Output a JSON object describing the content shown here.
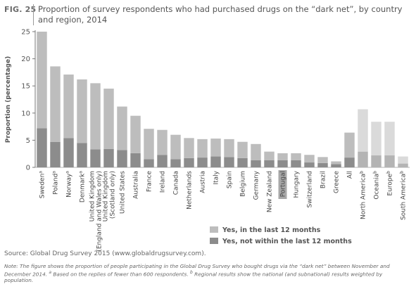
{
  "figure": {
    "label": "FIG. 25",
    "title": "Proportion of survey respondents who had purchased drugs on the “dark net”, by country and region, 2014"
  },
  "legend": {
    "recent": "Yes, in the last 12 months",
    "older": "Yes, not within the last 12 months"
  },
  "source": "Source: Global Drug Survey 2015 (www.globaldrugsurvey.com).",
  "note": "Note: The figure shows the proportion of people participating in the Global Drug Survey who bought drugs via the “dark net” between November and December 2014. (a) Based on the replies of fewer than 600 respondents. (b) Regional results show the national (and subnational) results weighted by population.",
  "colors": {
    "recent_country": "#bdbdbd",
    "older_country": "#8c8c8c",
    "recent_region": "#dadada",
    "older_region": "#b4b4b4",
    "highlight": "#a8a8a8"
  },
  "chart_data": {
    "type": "bar",
    "stacked": true,
    "ylabel": "Proportion (percentage)",
    "ylim": [
      0,
      25
    ],
    "yticks": [
      0,
      5,
      10,
      15,
      20,
      25
    ],
    "grid": false,
    "legend_position": "bottom",
    "highlighted_category": "Portugal",
    "categories": [
      {
        "label": "Sweden",
        "sup": "a"
      },
      {
        "label": "Poland",
        "sup": "a"
      },
      {
        "label": "Norway",
        "sup": "a"
      },
      {
        "label": "Denmark",
        "sup": "a"
      },
      {
        "label": "United Kingdom",
        "label2": "(England and Wales only)"
      },
      {
        "label": "United Kingdom",
        "label2": "(Scotland only)"
      },
      {
        "label": "United States"
      },
      {
        "label": "Australia"
      },
      {
        "label": "France"
      },
      {
        "label": "Ireland"
      },
      {
        "label": "Canada"
      },
      {
        "label": "Netherlands"
      },
      {
        "label": "Austria"
      },
      {
        "label": "Italy"
      },
      {
        "label": "Spain"
      },
      {
        "label": "Belgium"
      },
      {
        "label": "Germany"
      },
      {
        "label": "New Zealand"
      },
      {
        "label": "Portugal"
      },
      {
        "label": "Hungary"
      },
      {
        "label": "Switzerland"
      },
      {
        "label": "Brazil"
      },
      {
        "label": "Greece"
      },
      {
        "label": "All"
      },
      {
        "label": "North America",
        "sup": "b",
        "region": true
      },
      {
        "label": "Oceania",
        "sup": "b",
        "region": true
      },
      {
        "label": "Europe",
        "sup": "b",
        "region": true
      },
      {
        "label": "South America",
        "sup": "b",
        "region": true
      }
    ],
    "series": [
      {
        "name": "Yes, not within the last 12 months",
        "values": [
          7.2,
          4.7,
          5.4,
          4.5,
          3.3,
          3.4,
          3.2,
          2.6,
          1.5,
          2.3,
          1.5,
          1.7,
          1.8,
          2.0,
          1.9,
          1.7,
          1.3,
          1.3,
          1.3,
          1.3,
          0.9,
          0.8,
          0.6,
          1.8,
          2.9,
          2.2,
          2.2,
          0.7
        ]
      },
      {
        "name": "Yes, in the last 12 months",
        "values": [
          17.8,
          13.9,
          11.7,
          11.7,
          12.2,
          11.1,
          8.0,
          6.9,
          5.6,
          4.6,
          4.5,
          3.7,
          3.4,
          3.3,
          3.3,
          3.0,
          3.0,
          1.6,
          1.3,
          1.3,
          1.4,
          1.1,
          0.5,
          4.6,
          7.8,
          6.2,
          6.2,
          1.3
        ]
      }
    ]
  }
}
